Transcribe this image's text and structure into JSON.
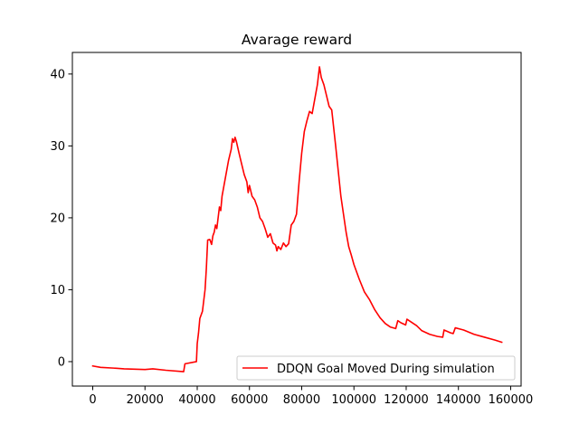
{
  "chart_data": {
    "type": "line",
    "title": "Avarage reward",
    "xlabel": "",
    "ylabel": "",
    "xlim": [
      -7800,
      164000
    ],
    "ylim": [
      -3.4,
      43.0
    ],
    "x_ticks": [
      0,
      20000,
      40000,
      60000,
      80000,
      100000,
      120000,
      140000,
      160000
    ],
    "x_tick_labels": [
      "0",
      "20000",
      "40000",
      "60000",
      "80000",
      "100000",
      "120000",
      "140000",
      "160000"
    ],
    "y_ticks": [
      0,
      10,
      20,
      30,
      40
    ],
    "y_tick_labels": [
      "0",
      "10",
      "20",
      "30",
      "40"
    ],
    "grid": false,
    "legend_position": "lower-right",
    "series": [
      {
        "name": "DDQN Goal Moved During simulation",
        "color": "#ff0000",
        "points": [
          [
            0,
            -0.6
          ],
          [
            3000,
            -0.8
          ],
          [
            8000,
            -0.9
          ],
          [
            12000,
            -1.0
          ],
          [
            20000,
            -1.1
          ],
          [
            23000,
            -1.0
          ],
          [
            28000,
            -1.2
          ],
          [
            34800,
            -1.4
          ],
          [
            35300,
            -0.3
          ],
          [
            39700,
            0.0
          ],
          [
            40000,
            2.5
          ],
          [
            40500,
            4.0
          ],
          [
            41000,
            6.0
          ],
          [
            42000,
            7.0
          ],
          [
            43000,
            10.0
          ],
          [
            43500,
            13.0
          ],
          [
            44000,
            16.9
          ],
          [
            44800,
            17.0
          ],
          [
            45500,
            16.3
          ],
          [
            46000,
            17.5
          ],
          [
            46500,
            18.0
          ],
          [
            47000,
            19.0
          ],
          [
            47500,
            18.5
          ],
          [
            48000,
            20.0
          ],
          [
            48500,
            21.5
          ],
          [
            49000,
            21.0
          ],
          [
            49500,
            23.0
          ],
          [
            50000,
            24.0
          ],
          [
            51000,
            26.0
          ],
          [
            52000,
            28.0
          ],
          [
            53000,
            29.5
          ],
          [
            53500,
            31.0
          ],
          [
            54000,
            30.5
          ],
          [
            54500,
            31.2
          ],
          [
            55000,
            30.6
          ],
          [
            56000,
            29.0
          ],
          [
            57000,
            27.5
          ],
          [
            58000,
            26.0
          ],
          [
            59000,
            25.0
          ],
          [
            59500,
            23.5
          ],
          [
            60000,
            24.5
          ],
          [
            61000,
            23.0
          ],
          [
            62000,
            22.5
          ],
          [
            63000,
            21.5
          ],
          [
            64000,
            20.0
          ],
          [
            65000,
            19.5
          ],
          [
            66000,
            18.5
          ],
          [
            67000,
            17.3
          ],
          [
            68000,
            17.8
          ],
          [
            69000,
            16.5
          ],
          [
            70000,
            16.2
          ],
          [
            70500,
            15.4
          ],
          [
            71000,
            16.0
          ],
          [
            72000,
            15.6
          ],
          [
            73000,
            16.5
          ],
          [
            74000,
            16.0
          ],
          [
            75000,
            16.4
          ],
          [
            76000,
            19.0
          ],
          [
            77000,
            19.5
          ],
          [
            78000,
            20.5
          ],
          [
            79000,
            25.0
          ],
          [
            80000,
            29.0
          ],
          [
            81000,
            32.0
          ],
          [
            82000,
            33.5
          ],
          [
            83000,
            34.8
          ],
          [
            84000,
            34.5
          ],
          [
            85000,
            36.5
          ],
          [
            86000,
            38.5
          ],
          [
            86800,
            41.0
          ],
          [
            87500,
            39.5
          ],
          [
            88500,
            38.5
          ],
          [
            89500,
            37.0
          ],
          [
            90500,
            35.5
          ],
          [
            91500,
            35.0
          ],
          [
            93000,
            30.0
          ],
          [
            94000,
            26.5
          ],
          [
            95000,
            23.0
          ],
          [
            96000,
            20.5
          ],
          [
            97000,
            18.0
          ],
          [
            98000,
            16.0
          ],
          [
            99000,
            14.8
          ],
          [
            100000,
            13.5
          ],
          [
            102000,
            11.5
          ],
          [
            104000,
            9.7
          ],
          [
            106000,
            8.6
          ],
          [
            108000,
            7.2
          ],
          [
            110000,
            6.1
          ],
          [
            112000,
            5.3
          ],
          [
            114000,
            4.8
          ],
          [
            116000,
            4.6
          ],
          [
            116800,
            5.7
          ],
          [
            118000,
            5.4
          ],
          [
            119800,
            5.1
          ],
          [
            120300,
            5.9
          ],
          [
            124000,
            5.0
          ],
          [
            126000,
            4.3
          ],
          [
            129000,
            3.8
          ],
          [
            132000,
            3.5
          ],
          [
            134000,
            3.4
          ],
          [
            134500,
            4.4
          ],
          [
            137000,
            4.0
          ],
          [
            138000,
            3.9
          ],
          [
            138800,
            4.7
          ],
          [
            142000,
            4.4
          ],
          [
            146000,
            3.8
          ],
          [
            150000,
            3.4
          ],
          [
            154000,
            3.0
          ],
          [
            156600,
            2.7
          ]
        ]
      }
    ]
  }
}
